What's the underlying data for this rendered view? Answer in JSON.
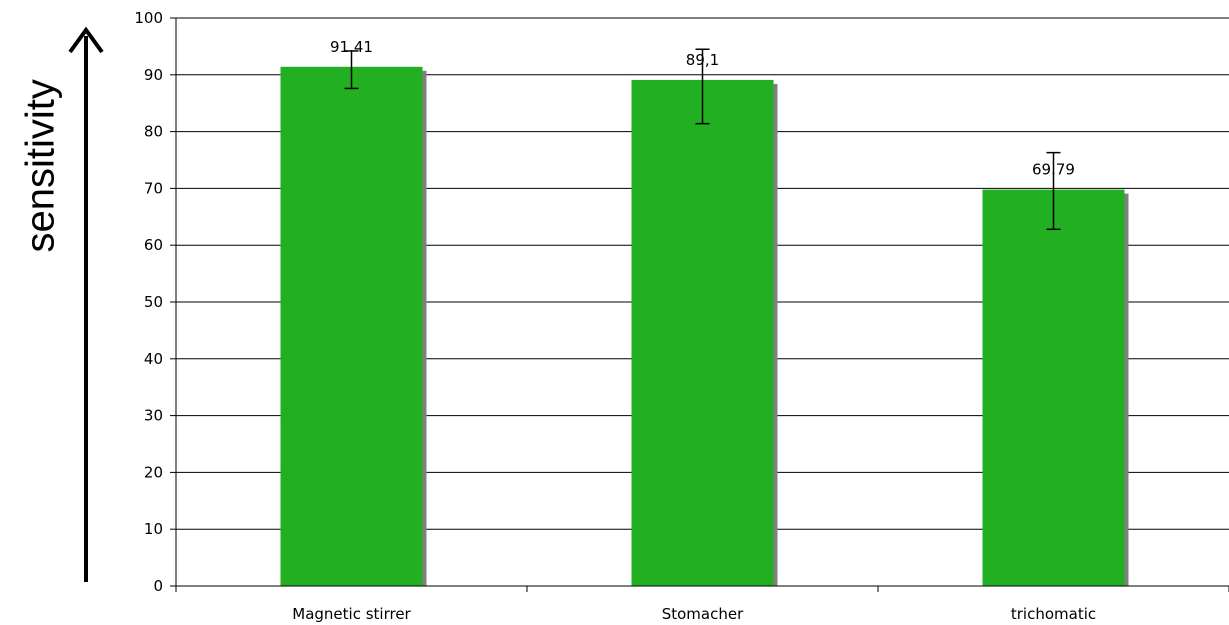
{
  "chart_data": {
    "type": "bar",
    "title": "",
    "xlabel": "",
    "ylabel": "sensitivity",
    "ylim": [
      0,
      100
    ],
    "yticks": [
      0,
      10,
      20,
      30,
      40,
      50,
      60,
      70,
      80,
      90,
      100
    ],
    "grid": true,
    "legend": "none",
    "categories": [
      "Magnetic stirrer",
      "Stomacher",
      "trichomatic"
    ],
    "values": [
      91.41,
      89.1,
      69.79
    ],
    "data_labels": [
      "91.41",
      "89,1",
      "69.79"
    ],
    "error_bars": [
      {
        "low": 87.6,
        "high": 94.2
      },
      {
        "low": 81.4,
        "high": 94.5
      },
      {
        "low": 62.8,
        "high": 76.3
      }
    ],
    "colors": {
      "bar": "#22b022",
      "shadow": "#808080",
      "axis": "#000000",
      "grid": "#000000"
    }
  }
}
